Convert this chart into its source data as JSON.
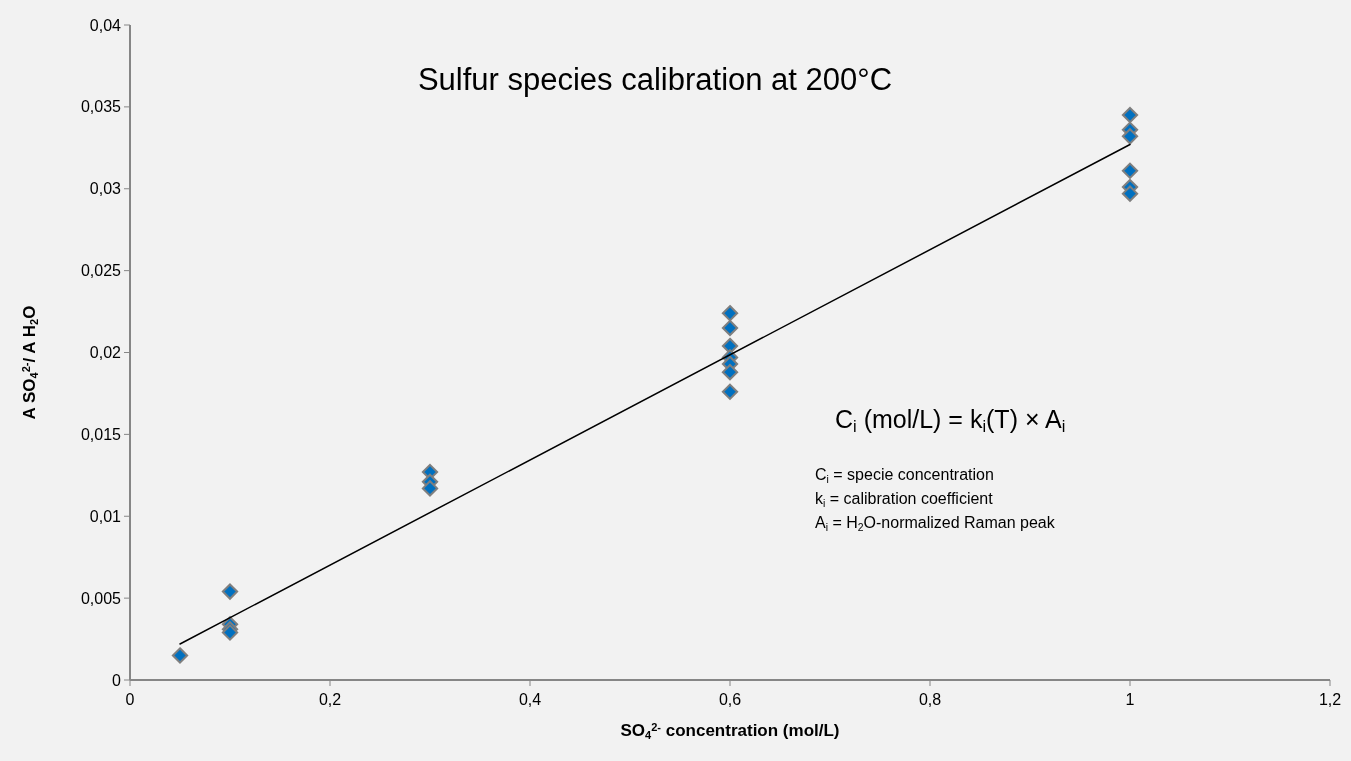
{
  "chart_data": {
    "type": "scatter",
    "title": "Sulfur species calibration at 200°C",
    "xlabel": "SO$_{4}$$^{2-}$ concentration (mol/L)",
    "ylabel": "A SO$_{4}$$^{2-}$/ A H$_{2}$O",
    "annotations": [
      "C$_{i}$ (mol/L) = k$_{i}$(T) × A$_{i}$",
      "C$_{i}$ = specie concentration",
      "k$_{i}$ = calibration coefficient",
      "A$_{i}$ = H$_{2}$O-normalized Raman peak"
    ],
    "series": [
      {
        "color": "#0070c0",
        "marker": "diamond",
        "x": [
          0.05,
          0.1,
          0.1,
          0.1,
          0.1,
          0.3,
          0.3,
          0.3,
          0.6,
          0.6,
          0.6,
          0.6,
          0.6,
          0.6,
          0.6,
          1,
          1,
          1,
          1,
          1,
          1
        ],
        "values": [
          0.0015,
          0.0054,
          0.0034,
          0.0031,
          0.0029,
          0.0127,
          0.0121,
          0.0117,
          0.0224,
          0.0215,
          0.0204,
          0.0197,
          0.0193,
          0.0188,
          0.0176,
          0.0345,
          0.0336,
          0.0332,
          0.0311,
          0.0301,
          0.0297
        ]
      },
      {
        "type": "line",
        "color": "#000000",
        "marker": "none",
        "x": [
          0.05,
          1
        ],
        "values": [
          0.0022,
          0.0327
        ]
      }
    ],
    "xlim": [
      0,
      1.2
    ],
    "ylim": [
      0,
      0.04
    ],
    "xticks": [
      0,
      {
        "value": 0.2,
        "label": "0,2"
      },
      {
        "value": 0.4,
        "label": "0,4"
      },
      {
        "value": 0.6,
        "label": "0,6"
      },
      {
        "value": 0.8,
        "label": "0,8"
      },
      1,
      {
        "value": 1.2,
        "label": "1,2"
      }
    ],
    "yticks": [
      0,
      {
        "value": 0.005,
        "label": "0,005"
      },
      {
        "value": 0.01,
        "label": "0,01"
      },
      {
        "value": 0.015,
        "label": "0,015"
      },
      {
        "value": 0.02,
        "label": "0,02"
      },
      {
        "value": 0.025,
        "label": "0,025"
      },
      {
        "value": 0.03,
        "label": "0,03"
      },
      {
        "value": 0.035,
        "label": "0,035"
      },
      {
        "value": 0.04,
        "label": "0,04"
      }
    ]
  }
}
